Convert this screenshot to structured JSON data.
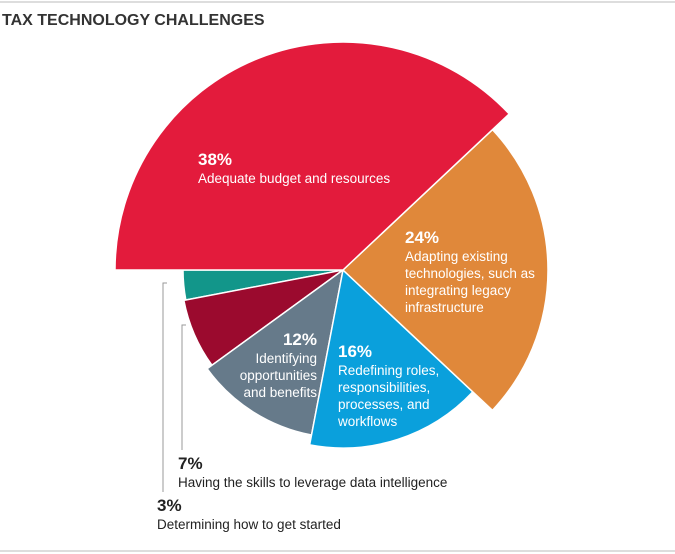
{
  "chart_data": {
    "type": "pie",
    "title": "TAX TECHNOLOGY CHALLENGES",
    "categories": [
      "Adequate budget and resources",
      "Adapting existing technologies, such as integrating legacy infrastructure",
      "Redefining roles, responsibilities, processes, and workflows",
      "Identifying opportunities and benefits",
      "Having the skills to leverage data intelligence",
      "Determining how to get started"
    ],
    "values": [
      38,
      24,
      16,
      12,
      7,
      3
    ],
    "value_labels": [
      "38%",
      "24%",
      "16%",
      "12%",
      "7%",
      "3%"
    ],
    "colors": [
      "#e31b3c",
      "#e0883a",
      "#0aa0dc",
      "#667a8a",
      "#9b0a2e",
      "#12968a"
    ]
  }
}
